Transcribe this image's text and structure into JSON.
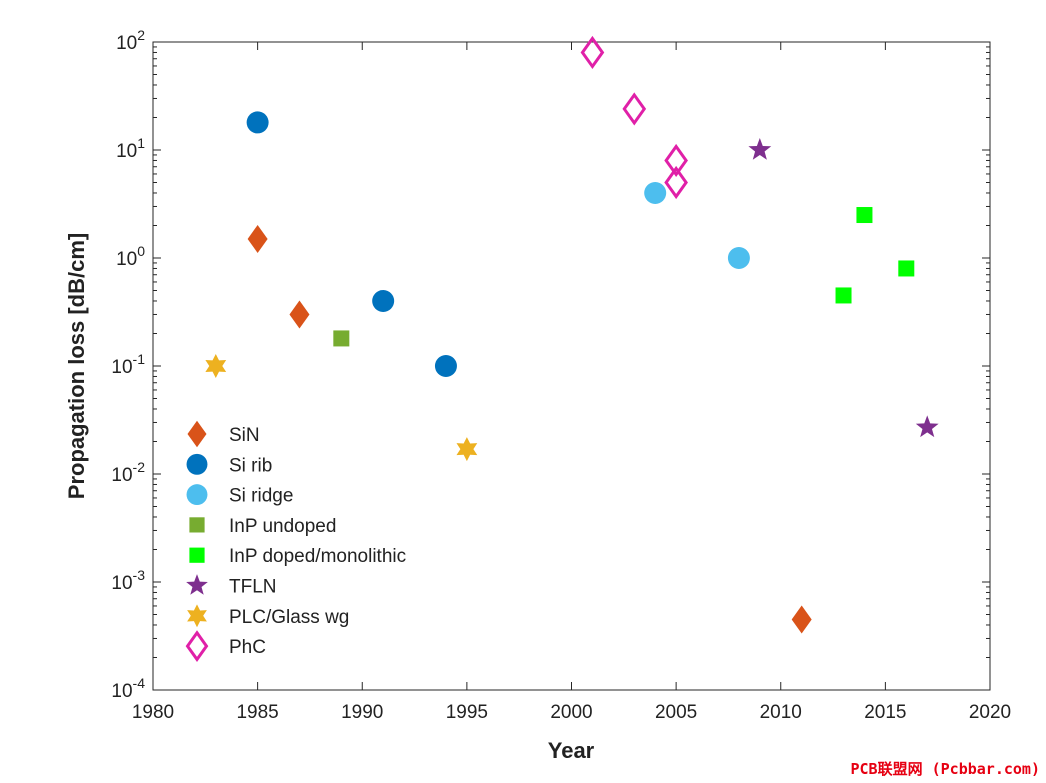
{
  "chart_data": {
    "type": "scatter",
    "xlabel": "Year",
    "ylabel": "Propagation loss [dB/cm]",
    "xlim": [
      1980,
      2020
    ],
    "ylim": [
      0.0001,
      100
    ],
    "yscale": "log",
    "xticks": [
      "1980",
      "1985",
      "1990",
      "1995",
      "2000",
      "2005",
      "2010",
      "2015",
      "2020"
    ],
    "yticks": [
      {
        "base": "10",
        "exp": "-4"
      },
      {
        "base": "10",
        "exp": "-3"
      },
      {
        "base": "10",
        "exp": "-2"
      },
      {
        "base": "10",
        "exp": "-1"
      },
      {
        "base": "10",
        "exp": "0"
      },
      {
        "base": "10",
        "exp": "1"
      },
      {
        "base": "10",
        "exp": "2"
      }
    ],
    "legend_position": "bottom-left",
    "series": [
      {
        "name": "SiN",
        "marker": "diamond",
        "color": "#d95319",
        "fill": true,
        "points": [
          {
            "x": 1985,
            "y": 1.5
          },
          {
            "x": 1987,
            "y": 0.3
          },
          {
            "x": 2011,
            "y": 0.00045
          }
        ]
      },
      {
        "name": "Si rib",
        "marker": "circle",
        "color": "#0072bd",
        "fill": true,
        "points": [
          {
            "x": 1985,
            "y": 18
          },
          {
            "x": 1991,
            "y": 0.4
          },
          {
            "x": 1994,
            "y": 0.1
          }
        ]
      },
      {
        "name": "Si ridge",
        "marker": "circle",
        "color": "#4dbeee",
        "fill": true,
        "points": [
          {
            "x": 2004,
            "y": 4
          },
          {
            "x": 2008,
            "y": 1
          }
        ]
      },
      {
        "name": "InP undoped",
        "marker": "square",
        "color": "#77ac30",
        "fill": true,
        "points": [
          {
            "x": 1989,
            "y": 0.18
          }
        ]
      },
      {
        "name": "InP doped/monolithic",
        "marker": "square",
        "color": "#00ff00",
        "fill": true,
        "points": [
          {
            "x": 2013,
            "y": 0.45
          },
          {
            "x": 2014,
            "y": 2.5
          },
          {
            "x": 2016,
            "y": 0.8
          }
        ]
      },
      {
        "name": "TFLN",
        "marker": "star5",
        "color": "#7e2f8e",
        "fill": true,
        "points": [
          {
            "x": 2009,
            "y": 10
          },
          {
            "x": 2017,
            "y": 0.027
          }
        ]
      },
      {
        "name": "PLC/Glass wg",
        "marker": "star6",
        "color": "#edb120",
        "fill": true,
        "points": [
          {
            "x": 1983,
            "y": 0.1
          },
          {
            "x": 1995,
            "y": 0.017
          }
        ]
      },
      {
        "name": "PhC",
        "marker": "diamond",
        "color": "#e020a8",
        "fill": false,
        "points": [
          {
            "x": 2001,
            "y": 80
          },
          {
            "x": 2003,
            "y": 24
          },
          {
            "x": 2005,
            "y": 8
          },
          {
            "x": 2005,
            "y": 5
          }
        ]
      }
    ]
  },
  "watermark": "PCB联盟网 (Pcbbar.com)"
}
